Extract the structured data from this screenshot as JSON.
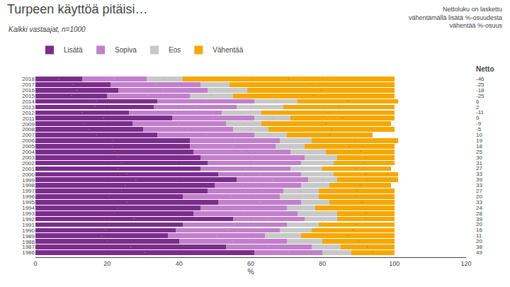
{
  "chart_data": {
    "type": "bar",
    "orientation": "horizontal",
    "stacked": true,
    "title": "Turpeen käyttöä pitäisi…",
    "subtitle": "Kaikki vastaajat, n=1000",
    "annotations": [
      "Nettoluku on laskettu\nvähentämällä lisätä %-osuudesta\nvähentää %-osuus"
    ],
    "xlabel": "%",
    "categories": [
      "2018",
      "2017",
      "2016",
      "2015",
      "2014",
      "2013",
      "2012",
      "2011",
      "2009",
      "2008",
      "2007",
      "2006",
      "2005",
      "2004",
      "2003",
      "2002",
      "2001",
      "2000",
      "1999",
      "1998",
      "1997",
      "1996",
      "1995",
      "1994",
      "1993",
      "1992",
      "1991",
      "1990",
      "1989",
      "1988",
      "1987",
      "1986"
    ],
    "series": [
      {
        "name": "Lisätä",
        "color": "#7B2D8B",
        "values": [
          13,
          21,
          23,
          20,
          34,
          33,
          26,
          38,
          27,
          30,
          34,
          43,
          43,
          44,
          46,
          48,
          46,
          51,
          56,
          50,
          48,
          41,
          51,
          46,
          44,
          55,
          41,
          39,
          37,
          40,
          53,
          61
        ]
      },
      {
        "name": "Sopiva",
        "color": "#C17FCC",
        "values": [
          18,
          25,
          25,
          23,
          27,
          23,
          26,
          23,
          26,
          25,
          27,
          25,
          24,
          27,
          29,
          26,
          25,
          23,
          20,
          24,
          21,
          27,
          23,
          24,
          29,
          20,
          29,
          29,
          27,
          30,
          24,
          19
        ]
      },
      {
        "name": "Eos",
        "color": "#C8C8C8",
        "values": [
          10,
          8,
          11,
          12,
          12,
          13,
          11,
          10,
          10,
          10,
          9,
          9,
          8,
          10,
          9,
          9,
          9,
          9,
          8,
          8,
          10,
          11,
          8,
          8,
          11,
          9,
          9,
          9,
          10,
          10,
          8,
          8
        ]
      },
      {
        "name": "Vähentää",
        "color": "#F5A800",
        "values": [
          59,
          46,
          41,
          45,
          28,
          31,
          37,
          29,
          36,
          35,
          24,
          24,
          25,
          19,
          16,
          17,
          19,
          18,
          17,
          17,
          21,
          21,
          18,
          22,
          16,
          16,
          21,
          23,
          26,
          20,
          15,
          12
        ]
      }
    ],
    "netto": {
      "name": "Netto",
      "values": [
        -46,
        -25,
        -18,
        -25,
        6,
        2,
        -11,
        9,
        -9,
        -5,
        10,
        19,
        18,
        25,
        30,
        31,
        27,
        33,
        39,
        33,
        27,
        20,
        33,
        24,
        28,
        39,
        20,
        16,
        11,
        20,
        38,
        49
      ]
    },
    "xlim": [
      0,
      120
    ],
    "xticks": [
      0,
      20,
      40,
      60,
      80,
      100,
      120
    ],
    "grid": true,
    "data_labels": true,
    "legend": "top"
  }
}
